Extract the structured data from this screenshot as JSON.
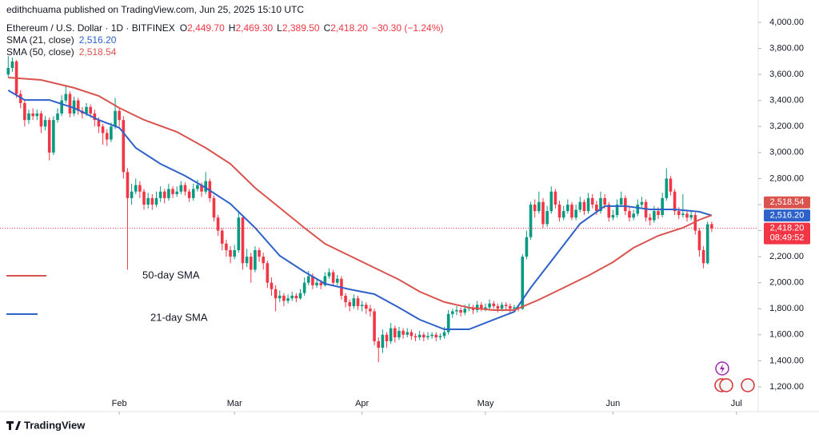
{
  "header": {
    "publisher": "edithchuama published on TradingView.com, Jun 25, 2025 15:10 UTC",
    "symbol": "Ethereum / U.S. Dollar · 1D · BITFINEX",
    "ohlc": [
      {
        "key": "O",
        "value": "2,449.70"
      },
      {
        "key": "H",
        "value": "2,469.30"
      },
      {
        "key": "L",
        "value": "2,389.50"
      },
      {
        "key": "C",
        "value": "2,418.20"
      }
    ],
    "change": "−30.30 (−1.24%)"
  },
  "chart_data": {
    "type": "candlestick",
    "up_color": "#089981",
    "down_color": "#f23645",
    "open": [
      3600,
      3650,
      3700,
      3450,
      3380,
      3250,
      3300,
      3280,
      3300,
      3200,
      3250,
      3000,
      3250,
      3300,
      3400,
      3450,
      3300,
      3400,
      3320,
      3300,
      3350,
      3300,
      3250,
      3200,
      3150,
      3100,
      3200,
      3320,
      3250,
      2850,
      2650,
      2700,
      2750,
      2700,
      2600,
      2650,
      2600,
      2650,
      2700,
      2650,
      2720,
      2680,
      2700,
      2750,
      2700,
      2650,
      2720,
      2750,
      2700,
      2780,
      2650,
      2500,
      2400,
      2300,
      2250,
      2200,
      2250,
      2500,
      2150,
      2200,
      2100,
      2250,
      2200,
      2150,
      2000,
      1950,
      1880,
      1900,
      1860,
      1880,
      1900,
      1880,
      1920,
      2000,
      2050,
      1980,
      2000,
      1980,
      2050,
      2080,
      2000,
      2030,
      1900,
      1850,
      1820,
      1880,
      1820,
      1830,
      1800,
      1780,
      1550,
      1500,
      1600,
      1550,
      1650,
      1580,
      1630,
      1600,
      1620,
      1590,
      1580,
      1600,
      1580,
      1590,
      1600,
      1580,
      1590,
      1620,
      1760,
      1780,
      1790,
      1770,
      1800,
      1810,
      1790,
      1830,
      1800,
      1810,
      1840,
      1820,
      1800,
      1830,
      1820,
      1800,
      1810,
      1800,
      2200,
      2350,
      2600,
      2550,
      2620,
      2450,
      2550,
      2700,
      2600,
      2500,
      2550,
      2600,
      2500,
      2560,
      2620,
      2550,
      2650,
      2600,
      2550,
      2650,
      2600,
      2500,
      2520,
      2600,
      2650,
      2550,
      2500,
      2530,
      2600,
      2620,
      2500,
      2480,
      2550,
      2520,
      2650,
      2800,
      2700,
      2550,
      2520,
      2530,
      2500,
      2520,
      2400,
      2250,
      2150,
      2449.7
    ],
    "high": [
      3740,
      3730,
      3710,
      3480,
      3400,
      3330,
      3340,
      3330,
      3320,
      3280,
      3270,
      3280,
      3340,
      3440,
      3520,
      3470,
      3430,
      3420,
      3350,
      3380,
      3370,
      3330,
      3270,
      3220,
      3180,
      3230,
      3420,
      3340,
      3280,
      2880,
      2760,
      2800,
      2780,
      2720,
      2690,
      2680,
      2700,
      2740,
      2720,
      2760,
      2740,
      2740,
      2780,
      2770,
      2720,
      2760,
      2790,
      2770,
      2850,
      2800,
      2670,
      2520,
      2420,
      2330,
      2280,
      2290,
      2550,
      2520,
      2260,
      2230,
      2280,
      2270,
      2230,
      2170,
      2040,
      1980,
      1940,
      1920,
      1910,
      1930,
      1920,
      1950,
      2040,
      2090,
      2070,
      2030,
      2020,
      2080,
      2110,
      2100,
      2060,
      2050,
      1920,
      1870,
      1910,
      1900,
      1860,
      1850,
      1830,
      1800,
      1580,
      1640,
      1620,
      1690,
      1670,
      1660,
      1650,
      1650,
      1640,
      1610,
      1630,
      1620,
      1620,
      1620,
      1620,
      1610,
      1660,
      1790,
      1800,
      1820,
      1810,
      1830,
      1840,
      1830,
      1860,
      1850,
      1840,
      1870,
      1860,
      1840,
      1850,
      1850,
      1840,
      1830,
      1830,
      2220,
      2400,
      2620,
      2640,
      2700,
      2650,
      2590,
      2740,
      2720,
      2630,
      2590,
      2640,
      2620,
      2600,
      2660,
      2640,
      2690,
      2680,
      2630,
      2700,
      2680,
      2620,
      2560,
      2640,
      2700,
      2670,
      2580,
      2560,
      2640,
      2660,
      2640,
      2530,
      2590,
      2580,
      2690,
      2880,
      2820,
      2720,
      2580,
      2680,
      2560,
      2550,
      2540,
      2420,
      2280,
      2470,
      2469.3
    ],
    "low": [
      3580,
      3620,
      3420,
      3340,
      3200,
      3220,
      3250,
      3250,
      3150,
      3170,
      2940,
      2980,
      3230,
      3280,
      3380,
      3270,
      3280,
      3290,
      3260,
      3280,
      3270,
      3200,
      3150,
      3060,
      3050,
      3080,
      3180,
      3200,
      2800,
      2100,
      2600,
      2680,
      2650,
      2560,
      2570,
      2560,
      2580,
      2620,
      2610,
      2630,
      2650,
      2660,
      2680,
      2670,
      2620,
      2630,
      2700,
      2660,
      2680,
      2620,
      2470,
      2360,
      2250,
      2200,
      2150,
      2180,
      2230,
      2100,
      2120,
      2000,
      2080,
      2160,
      2100,
      1960,
      1900,
      1780,
      1850,
      1820,
      1840,
      1860,
      1850,
      1870,
      1900,
      1980,
      1950,
      1960,
      1950,
      1970,
      2030,
      1980,
      1980,
      1870,
      1810,
      1780,
      1800,
      1790,
      1780,
      1760,
      1740,
      1520,
      1390,
      1460,
      1500,
      1530,
      1540,
      1560,
      1570,
      1580,
      1560,
      1550,
      1560,
      1550,
      1560,
      1570,
      1550,
      1560,
      1570,
      1600,
      1730,
      1750,
      1740,
      1750,
      1780,
      1760,
      1770,
      1780,
      1780,
      1790,
      1800,
      1770,
      1780,
      1790,
      1770,
      1780,
      1780,
      1790,
      2180,
      2330,
      2500,
      2530,
      2420,
      2430,
      2530,
      2570,
      2470,
      2480,
      2530,
      2480,
      2480,
      2540,
      2520,
      2530,
      2570,
      2520,
      2530,
      2570,
      2470,
      2480,
      2500,
      2580,
      2520,
      2470,
      2480,
      2510,
      2580,
      2470,
      2440,
      2460,
      2490,
      2500,
      2630,
      2670,
      2520,
      2490,
      2500,
      2470,
      2480,
      2370,
      2200,
      2110,
      2140,
      2389.5
    ],
    "close": [
      3650,
      3700,
      3450,
      3380,
      3250,
      3300,
      3280,
      3300,
      3200,
      3250,
      3000,
      3250,
      3300,
      3400,
      3450,
      3300,
      3400,
      3320,
      3300,
      3350,
      3300,
      3250,
      3200,
      3150,
      3100,
      3200,
      3320,
      3250,
      2850,
      2650,
      2700,
      2750,
      2700,
      2600,
      2650,
      2600,
      2650,
      2700,
      2650,
      2720,
      2680,
      2700,
      2750,
      2700,
      2650,
      2720,
      2750,
      2700,
      2780,
      2650,
      2500,
      2400,
      2300,
      2250,
      2200,
      2250,
      2500,
      2150,
      2200,
      2100,
      2250,
      2200,
      2150,
      2000,
      1950,
      1880,
      1900,
      1860,
      1880,
      1900,
      1880,
      1920,
      2000,
      2050,
      1980,
      2000,
      1980,
      2050,
      2080,
      2000,
      2030,
      1900,
      1850,
      1820,
      1880,
      1820,
      1830,
      1800,
      1780,
      1550,
      1500,
      1600,
      1550,
      1650,
      1580,
      1630,
      1600,
      1620,
      1590,
      1580,
      1600,
      1580,
      1590,
      1600,
      1580,
      1590,
      1620,
      1760,
      1780,
      1790,
      1770,
      1800,
      1810,
      1790,
      1830,
      1800,
      1810,
      1840,
      1820,
      1800,
      1830,
      1820,
      1800,
      1810,
      1800,
      2200,
      2350,
      2600,
      2550,
      2620,
      2450,
      2550,
      2700,
      2600,
      2500,
      2550,
      2600,
      2500,
      2560,
      2620,
      2550,
      2650,
      2600,
      2550,
      2650,
      2600,
      2500,
      2520,
      2600,
      2650,
      2550,
      2500,
      2530,
      2600,
      2620,
      2500,
      2480,
      2550,
      2520,
      2650,
      2800,
      2700,
      2550,
      2520,
      2530,
      2500,
      2520,
      2400,
      2250,
      2150,
      2448.5,
      2418.2
    ],
    "last_price_label": "2,418.20",
    "countdown": "08:49:52",
    "xlim": [
      -2,
      182.3
    ],
    "xticks": [
      {
        "value": 27,
        "label": "Feb"
      },
      {
        "value": 55,
        "label": "Mar"
      },
      {
        "value": 86,
        "label": "Apr"
      },
      {
        "value": 116,
        "label": "May"
      },
      {
        "value": 147,
        "label": "Jun"
      },
      {
        "value": 177,
        "label": "Jul"
      }
    ],
    "ylim": [
      1040,
      4172
    ],
    "yticks": [
      {
        "value": 1200,
        "label": "1,200.00"
      },
      {
        "value": 1400,
        "label": "1,400.00"
      },
      {
        "value": 1600,
        "label": "1,600.00"
      },
      {
        "value": 1800,
        "label": "1,800.00"
      },
      {
        "value": 2000,
        "label": "2,000.00"
      },
      {
        "value": 2200,
        "label": "2,200.00"
      },
      {
        "value": 2400,
        "label": "2,400.00"
      },
      {
        "value": 2600,
        "label": "2,600.00"
      },
      {
        "value": 2800,
        "label": "2,800.00"
      },
      {
        "value": 3000,
        "label": "3,000.00"
      },
      {
        "value": 3200,
        "label": "3,200.00"
      },
      {
        "value": 3400,
        "label": "3,400.00"
      },
      {
        "value": 3600,
        "label": "3,600.00"
      },
      {
        "value": 3800,
        "label": "3,800.00"
      },
      {
        "value": 4000,
        "label": "4,000.00"
      }
    ],
    "grid": false,
    "series": [
      {
        "name": "SMA (21, close)",
        "color": "#2e62c9",
        "x": [
          0,
          4,
          10,
          16,
          22,
          27,
          31,
          37,
          43,
          48,
          54,
          60,
          66,
          72,
          77,
          83,
          89,
          95,
          100,
          106,
          112,
          118,
          123,
          127,
          133,
          139,
          145,
          150,
          156,
          162,
          168,
          171
        ],
        "values": [
          3478,
          3404,
          3404,
          3343,
          3250,
          3190,
          3036,
          2913,
          2821,
          2729,
          2606,
          2422,
          2207,
          2084,
          1992,
          1949,
          1912,
          1808,
          1716,
          1642,
          1642,
          1716,
          1777,
          1961,
          2207,
          2453,
          2588,
          2588,
          2563,
          2563,
          2545,
          2516.2
        ],
        "last_label": "2,516.20"
      },
      {
        "name": "SMA (50, close)",
        "color": "#d9534f",
        "x": [
          0,
          8,
          16,
          22,
          27,
          33,
          41,
          48,
          54,
          60,
          66,
          72,
          77,
          83,
          89,
          95,
          100,
          106,
          112,
          118,
          123,
          129,
          135,
          141,
          147,
          152,
          158,
          164,
          168,
          171
        ],
        "values": [
          3576,
          3558,
          3497,
          3435,
          3343,
          3251,
          3159,
          3036,
          2913,
          2729,
          2575,
          2422,
          2299,
          2207,
          2115,
          2023,
          1931,
          1851,
          1808,
          1789,
          1789,
          1869,
          1961,
          2054,
          2158,
          2268,
          2361,
          2422,
          2483,
          2518.54
        ],
        "last_label": "2,518.54"
      }
    ],
    "annotations": [
      {
        "text": "50-day SMA",
        "color": "#d9534f"
      },
      {
        "text": "21-day SMA",
        "color": "#2e62c9"
      }
    ]
  },
  "footer": {
    "brand": "TradingView"
  }
}
